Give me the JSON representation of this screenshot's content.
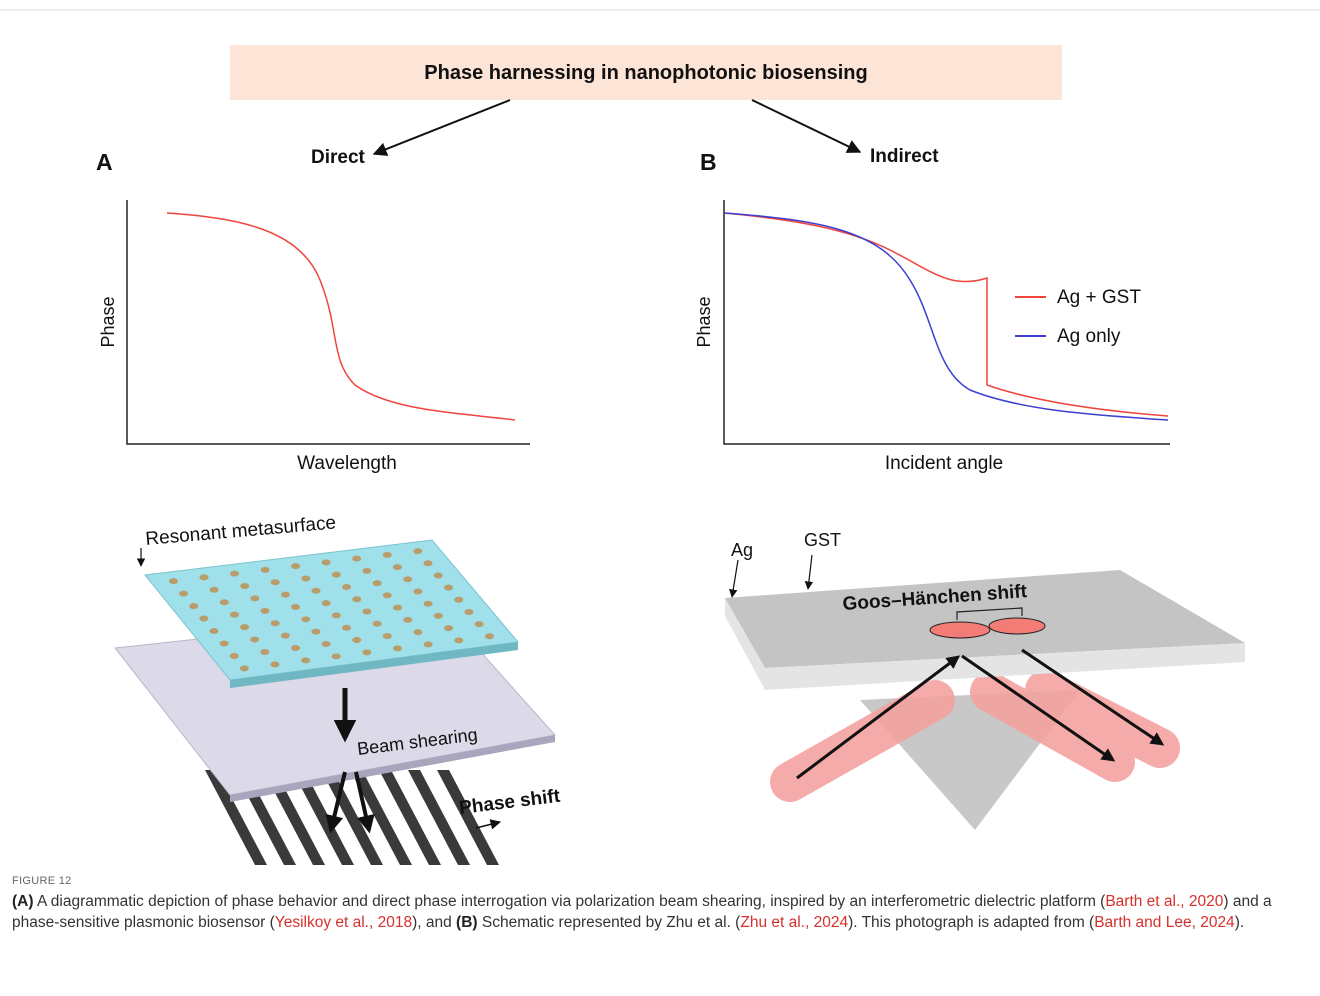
{
  "figure": {
    "title": "Phase harnessing in nanophotonic biosensing",
    "panel_a": {
      "label": "A",
      "branch": "Direct",
      "y_label": "Phase",
      "x_label": "Wavelength",
      "diagram": {
        "top_label": "Resonant metasurface",
        "middle_label": "Beam shearing",
        "bottom_label": "Phase shift"
      }
    },
    "panel_b": {
      "label": "B",
      "branch": "Indirect",
      "y_label": "Phase",
      "x_label": "Incident angle",
      "legend": [
        "Ag + GST",
        "Ag only"
      ],
      "diagram": {
        "layer_labels": [
          "Ag",
          "GST"
        ],
        "shift_label": "Goos–Hänchen shift"
      }
    }
  },
  "caption": {
    "label": "FIGURE 12",
    "segments": [
      {
        "text": "(A)",
        "style": "bold"
      },
      {
        "text": " A diagrammatic depiction of phase behavior and direct phase interrogation via polarization beam shearing, inspired by an interferometric dielectric platform (",
        "style": "plain"
      },
      {
        "text": "Barth et al., 2020",
        "style": "link"
      },
      {
        "text": ") and a phase-sensitive plasmonic biosensor (",
        "style": "plain"
      },
      {
        "text": "Yesilkoy et al., 2018",
        "style": "link"
      },
      {
        "text": "), and ",
        "style": "plain"
      },
      {
        "text": "(B)",
        "style": "bold"
      },
      {
        "text": " Schematic represented by Zhu et al. (",
        "style": "plain"
      },
      {
        "text": "Zhu et al., 2024",
        "style": "link"
      },
      {
        "text": "). This photograph is adapted from (",
        "style": "plain"
      },
      {
        "text": "Barth and Lee, 2024",
        "style": "link"
      },
      {
        "text": ").",
        "style": "plain"
      }
    ]
  }
}
